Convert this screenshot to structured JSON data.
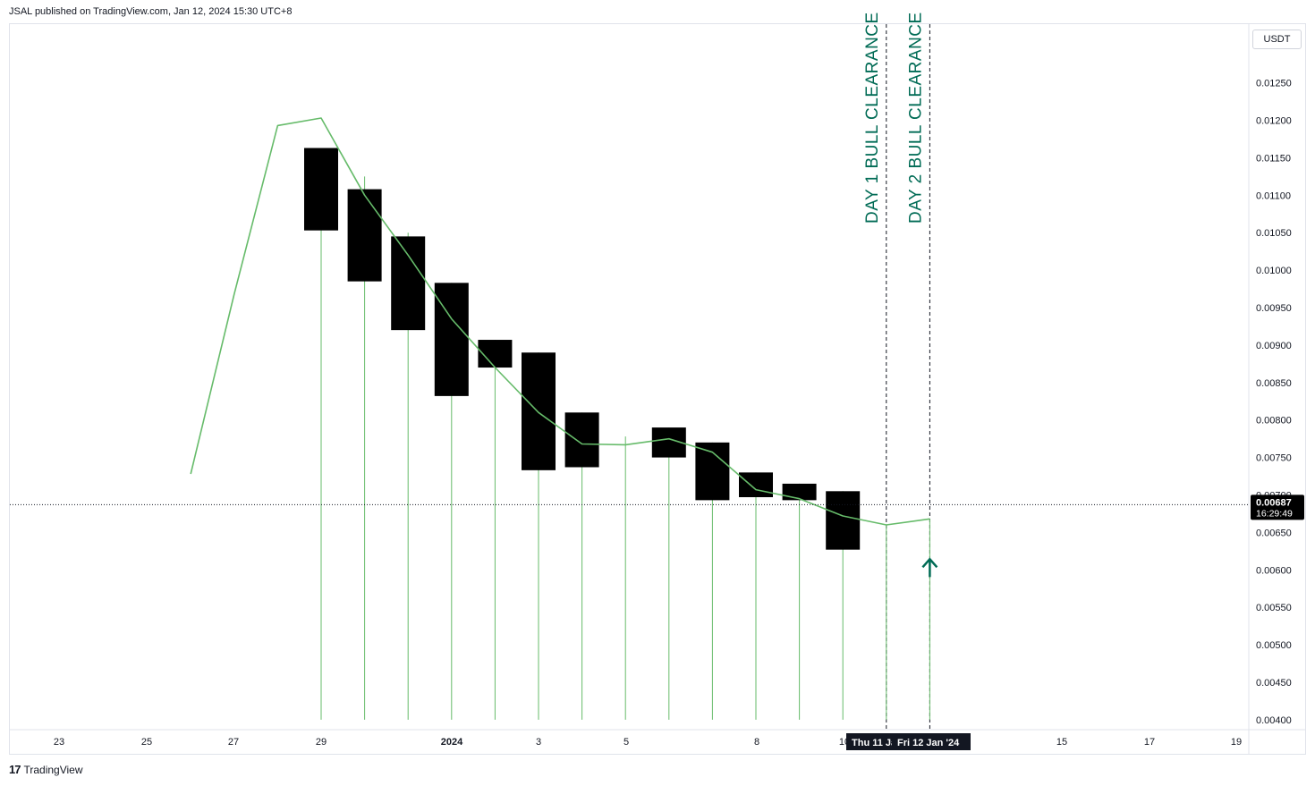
{
  "header": {
    "published_by": "JSAL published on TradingView.com, Jan 12, 2024 15:30 UTC+8"
  },
  "footer": {
    "brand": "TradingView",
    "logo_text": "17"
  },
  "price_scale": {
    "currency": "USDT",
    "ticks": [
      "0.01250",
      "0.01200",
      "0.01150",
      "0.01100",
      "0.01050",
      "0.01000",
      "0.00950",
      "0.00900",
      "0.00850",
      "0.00800",
      "0.00750",
      "0.00700",
      "0.00650",
      "0.00600",
      "0.00550",
      "0.00500",
      "0.00450",
      "0.00400"
    ],
    "last_price_label": "0.00687",
    "countdown_label": "16:29:49",
    "colors": {
      "price_tag_bg": "#000000",
      "price_tag_text": "#ffffff"
    }
  },
  "time_axis": {
    "labels": [
      {
        "text": "23",
        "bold": false
      },
      {
        "text": "25",
        "bold": false
      },
      {
        "text": "27",
        "bold": false
      },
      {
        "text": "29",
        "bold": false
      },
      {
        "text": "2024",
        "bold": true
      },
      {
        "text": "3",
        "bold": false
      },
      {
        "text": "5",
        "bold": false
      },
      {
        "text": "8",
        "bold": false
      },
      {
        "text": "10",
        "bold": false
      },
      {
        "text": "15",
        "bold": false
      },
      {
        "text": "17",
        "bold": false
      },
      {
        "text": "19",
        "bold": false
      }
    ],
    "highlight_labels": [
      "Thu 11 Jan '24",
      "Fri 12 Jan '24"
    ]
  },
  "annotations": [
    {
      "text": "DAY  1 BULL CLEARANCE",
      "date": "Thu 11 Jan"
    },
    {
      "text": "DAY  2 BULL CLEARANCE",
      "date": "Fri 12 Jan"
    }
  ],
  "chart_data": {
    "type": "candlestick",
    "y_range": [
      0.00395,
      0.01295
    ],
    "current_price": 0.00687,
    "candles": [
      {
        "date": "Dec 29",
        "open": 0.01163,
        "close": 0.01053,
        "low": 0.004
      },
      {
        "date": "Dec 30",
        "open": 0.01108,
        "close": 0.00985,
        "high": 0.01125,
        "low": 0.004
      },
      {
        "date": "Dec 31",
        "open": 0.01045,
        "close": 0.0092,
        "high": 0.0105,
        "low": 0.004
      },
      {
        "date": "Jan 1",
        "open": 0.00983,
        "close": 0.00832,
        "low": 0.004
      },
      {
        "date": "Jan 2",
        "open": 0.00907,
        "close": 0.0087,
        "low": 0.004
      },
      {
        "date": "Jan 3",
        "open": 0.0089,
        "close": 0.00733,
        "low": 0.004
      },
      {
        "date": "Jan 4",
        "open": 0.0081,
        "close": 0.00737,
        "low": 0.004
      },
      {
        "date": "Jan 6",
        "open": 0.0079,
        "close": 0.0075,
        "low": 0.004
      },
      {
        "date": "Jan 7",
        "open": 0.0077,
        "close": 0.00693,
        "low": 0.004
      },
      {
        "date": "Jan 8",
        "open": 0.0073,
        "close": 0.00697,
        "low": 0.004
      },
      {
        "date": "Jan 9",
        "open": 0.00715,
        "close": 0.00693,
        "low": 0.004
      },
      {
        "date": "Jan 10",
        "open": 0.00705,
        "close": 0.00627,
        "low": 0.004
      }
    ],
    "wick_only": [
      {
        "date": "Jan 5",
        "high": 0.00778,
        "low": 0.004
      },
      {
        "date": "Jan 11",
        "high": 0.0066,
        "low": 0.004
      },
      {
        "date": "Jan 12",
        "high": 0.00668,
        "low": 0.004
      }
    ],
    "line_series": {
      "color": "#66bb6a",
      "points": [
        {
          "date": "Dec 26",
          "value": 0.00728
        },
        {
          "date": "Dec 27",
          "value": 0.00968
        },
        {
          "date": "Dec 28",
          "value": 0.01193
        },
        {
          "date": "Dec 29",
          "value": 0.01203
        },
        {
          "date": "Dec 30",
          "value": 0.011
        },
        {
          "date": "Dec 31",
          "value": 0.0102
        },
        {
          "date": "Jan 1",
          "value": 0.00935
        },
        {
          "date": "Jan 2",
          "value": 0.0087
        },
        {
          "date": "Jan 3",
          "value": 0.0081
        },
        {
          "date": "Jan 4",
          "value": 0.00768
        },
        {
          "date": "Jan 5",
          "value": 0.00767
        },
        {
          "date": "Jan 6",
          "value": 0.00775
        },
        {
          "date": "Jan 7",
          "value": 0.00757
        },
        {
          "date": "Jan 8",
          "value": 0.00707
        },
        {
          "date": "Jan 9",
          "value": 0.00695
        },
        {
          "date": "Jan 10",
          "value": 0.00672
        },
        {
          "date": "Jan 11",
          "value": 0.0066
        },
        {
          "date": "Jan 12",
          "value": 0.00668
        }
      ]
    },
    "marker": {
      "date": "Jan 12",
      "value": 0.006,
      "shape": "arrow-up",
      "color": "#006b55"
    }
  }
}
